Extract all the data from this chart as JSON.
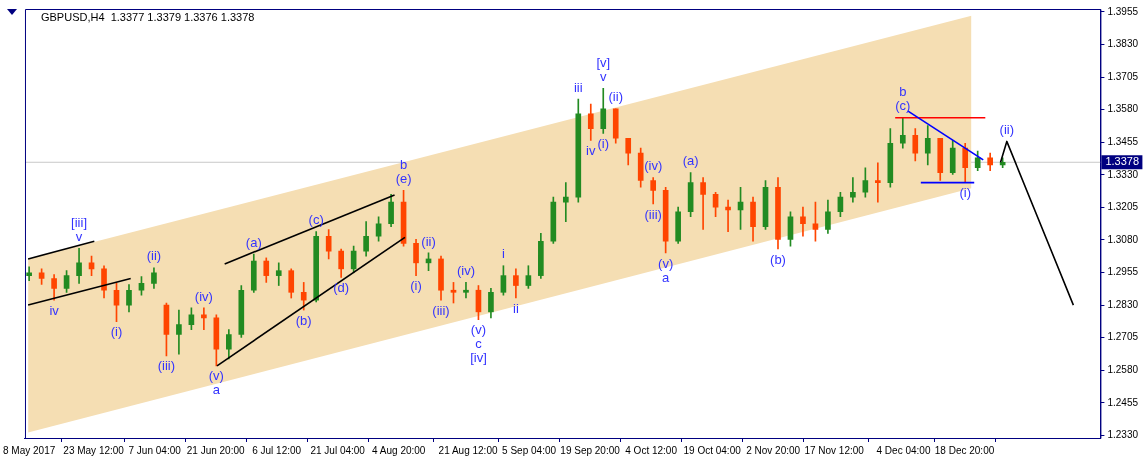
{
  "chart_data": {
    "type": "candlestick",
    "title": "GBPUSD,H4  1.3377 1.3379 1.3376 1.3378",
    "x": [
      "2017-05-08",
      "2017-05-11",
      "2017-05-14",
      "2017-05-17",
      "2017-05-20",
      "2017-05-23",
      "2017-05-26",
      "2017-05-29",
      "2017-06-01",
      "2017-06-04",
      "2017-06-07",
      "2017-06-10",
      "2017-06-13",
      "2017-06-16",
      "2017-06-19",
      "2017-06-22",
      "2017-06-25",
      "2017-06-28",
      "2017-07-01",
      "2017-07-04",
      "2017-07-07",
      "2017-07-10",
      "2017-07-13",
      "2017-07-16",
      "2017-07-19",
      "2017-07-22",
      "2017-07-25",
      "2017-07-28",
      "2017-07-31",
      "2017-08-03",
      "2017-08-06",
      "2017-08-09",
      "2017-08-12",
      "2017-08-15",
      "2017-08-18",
      "2017-08-21",
      "2017-08-24",
      "2017-08-27",
      "2017-08-30",
      "2017-09-02",
      "2017-09-05",
      "2017-09-08",
      "2017-09-11",
      "2017-09-14",
      "2017-09-17",
      "2017-09-20",
      "2017-09-23",
      "2017-09-26",
      "2017-09-29",
      "2017-10-02",
      "2017-10-05",
      "2017-10-08",
      "2017-10-11",
      "2017-10-14",
      "2017-10-17",
      "2017-10-20",
      "2017-10-23",
      "2017-10-26",
      "2017-10-29",
      "2017-11-01",
      "2017-11-04",
      "2017-11-07",
      "2017-11-10",
      "2017-11-13",
      "2017-11-16",
      "2017-11-19",
      "2017-11-22",
      "2017-11-25",
      "2017-11-28",
      "2017-12-01",
      "2017-12-04",
      "2017-12-07",
      "2017-12-10",
      "2017-12-13",
      "2017-12-16",
      "2017-12-19",
      "2017-12-22",
      "2017-12-25",
      "2017-12-28"
    ],
    "ohlc": [
      [
        1.2943,
        1.2977,
        1.2924,
        1.2954
      ],
      [
        1.2954,
        1.2969,
        1.2909,
        1.2932
      ],
      [
        1.2932,
        1.2947,
        1.2849,
        1.2894
      ],
      [
        1.2894,
        1.2962,
        1.2879,
        1.2943
      ],
      [
        1.2943,
        1.3048,
        1.2913,
        1.2992
      ],
      [
        1.2992,
        1.3018,
        1.2943,
        1.2969
      ],
      [
        1.2969,
        1.2981,
        1.2857,
        1.2887
      ],
      [
        1.2887,
        1.2913,
        1.2766,
        1.283
      ],
      [
        1.283,
        1.2909,
        1.2804,
        1.2887
      ],
      [
        1.2887,
        1.2939,
        1.2868,
        1.2913
      ],
      [
        1.2913,
        1.2973,
        1.2894,
        1.2954
      ],
      [
        1.283,
        1.2838,
        1.2635,
        1.2717
      ],
      [
        1.2717,
        1.2811,
        1.2642,
        1.2755
      ],
      [
        1.2755,
        1.2819,
        1.2736,
        1.2793
      ],
      [
        1.2793,
        1.2819,
        1.2736,
        1.2781
      ],
      [
        1.2781,
        1.2793,
        1.2597,
        1.2661
      ],
      [
        1.2661,
        1.2736,
        1.2623,
        1.2717
      ],
      [
        1.2717,
        1.2905,
        1.2706,
        1.2887
      ],
      [
        1.2887,
        1.3026,
        1.2879,
        1.2999
      ],
      [
        1.2999,
        1.3011,
        1.2917,
        1.2943
      ],
      [
        1.2943,
        1.2992,
        1.2905,
        1.2962
      ],
      [
        1.2962,
        1.2969,
        1.2857,
        1.2879
      ],
      [
        1.2879,
        1.2917,
        1.2811,
        1.2849
      ],
      [
        1.2849,
        1.3112,
        1.2842,
        1.3094
      ],
      [
        1.3094,
        1.312,
        1.3007,
        1.3037
      ],
      [
        1.3037,
        1.3045,
        1.2936,
        1.2969
      ],
      [
        1.2969,
        1.3056,
        1.2954,
        1.3037
      ],
      [
        1.3037,
        1.315,
        1.3018,
        1.3094
      ],
      [
        1.3094,
        1.3169,
        1.3075,
        1.3142
      ],
      [
        1.3142,
        1.3255,
        1.3131,
        1.3225
      ],
      [
        1.3225,
        1.327,
        1.3056,
        1.3067
      ],
      [
        1.3067,
        1.3082,
        1.2943,
        1.2992
      ],
      [
        1.2992,
        1.303,
        1.2962,
        1.3007
      ],
      [
        1.3007,
        1.3018,
        1.2849,
        1.2887
      ],
      [
        1.2887,
        1.2917,
        1.2838,
        1.2879
      ],
      [
        1.2879,
        1.2917,
        1.2857,
        1.2887
      ],
      [
        1.2887,
        1.2905,
        1.2774,
        1.2804
      ],
      [
        1.2804,
        1.2894,
        1.2781,
        1.2879
      ],
      [
        1.2879,
        1.2981,
        1.2868,
        1.2943
      ],
      [
        1.2943,
        1.2969,
        1.2857,
        1.2905
      ],
      [
        1.2905,
        1.2981,
        1.2894,
        1.2943
      ],
      [
        1.2943,
        1.3105,
        1.2932,
        1.3075
      ],
      [
        1.3075,
        1.3244,
        1.3067,
        1.3225
      ],
      [
        1.3225,
        1.33,
        1.315,
        1.3244
      ],
      [
        1.3244,
        1.362,
        1.3225,
        1.3564
      ],
      [
        1.3564,
        1.3601,
        1.3462,
        1.3507
      ],
      [
        1.3507,
        1.3662,
        1.3489,
        1.3583
      ],
      [
        1.3583,
        1.3583,
        1.3451,
        1.347
      ],
      [
        1.347,
        1.347,
        1.3368,
        1.3413
      ],
      [
        1.3413,
        1.3432,
        1.3282,
        1.3308
      ],
      [
        1.3308,
        1.3319,
        1.3218,
        1.327
      ],
      [
        1.327,
        1.3282,
        1.303,
        1.3075
      ],
      [
        1.3075,
        1.3206,
        1.3067,
        1.3188
      ],
      [
        1.3188,
        1.3338,
        1.3169,
        1.33
      ],
      [
        1.33,
        1.3319,
        1.312,
        1.3255
      ],
      [
        1.3255,
        1.3263,
        1.3169,
        1.3206
      ],
      [
        1.3206,
        1.3233,
        1.3112,
        1.3195
      ],
      [
        1.3195,
        1.3282,
        1.312,
        1.3225
      ],
      [
        1.3225,
        1.3244,
        1.3075,
        1.3131
      ],
      [
        1.3131,
        1.3308,
        1.312,
        1.3282
      ],
      [
        1.3282,
        1.3319,
        1.3045,
        1.3082
      ],
      [
        1.3082,
        1.3188,
        1.3056,
        1.3169
      ],
      [
        1.3169,
        1.3206,
        1.3094,
        1.3142
      ],
      [
        1.3142,
        1.3225,
        1.3075,
        1.312
      ],
      [
        1.312,
        1.3233,
        1.3105,
        1.3188
      ],
      [
        1.3188,
        1.3263,
        1.3169,
        1.3244
      ],
      [
        1.3244,
        1.3319,
        1.3225,
        1.3263
      ],
      [
        1.3263,
        1.3357,
        1.3244,
        1.3308
      ],
      [
        1.3308,
        1.3376,
        1.3225,
        1.33
      ],
      [
        1.33,
        1.3507,
        1.3282,
        1.3451
      ],
      [
        1.3451,
        1.3549,
        1.3432,
        1.3481
      ],
      [
        1.3481,
        1.3507,
        1.3383,
        1.3413
      ],
      [
        1.3413,
        1.3519,
        1.3368,
        1.347
      ],
      [
        1.347,
        1.347,
        1.3308,
        1.3338
      ],
      [
        1.3338,
        1.3462,
        1.3331,
        1.3432
      ],
      [
        1.3432,
        1.3451,
        1.33,
        1.3357
      ],
      [
        1.3357,
        1.3421,
        1.3346,
        1.3395
      ],
      [
        1.3395,
        1.3413,
        1.3346,
        1.3368
      ],
      [
        1.3368,
        1.3395,
        1.3357,
        1.3378
      ]
    ],
    "colors": [
      "#228b22",
      "#ff4500",
      "#ff4500",
      "#228b22",
      "#228b22",
      "#ff4500",
      "#ff4500",
      "#ff4500",
      "#228b22",
      "#228b22",
      "#228b22",
      "#ff4500",
      "#228b22",
      "#228b22",
      "#ff4500",
      "#ff4500",
      "#228b22",
      "#228b22",
      "#228b22",
      "#ff4500",
      "#228b22",
      "#ff4500",
      "#ff4500",
      "#228b22",
      "#ff4500",
      "#ff4500",
      "#228b22",
      "#228b22",
      "#228b22",
      "#228b22",
      "#ff4500",
      "#ff4500",
      "#228b22",
      "#ff4500",
      "#ff4500",
      "#228b22",
      "#ff4500",
      "#228b22",
      "#228b22",
      "#ff4500",
      "#228b22",
      "#228b22",
      "#228b22",
      "#228b22",
      "#228b22",
      "#ff4500",
      "#228b22",
      "#ff4500",
      "#ff4500",
      "#ff4500",
      "#ff4500",
      "#ff4500",
      "#228b22",
      "#228b22",
      "#ff4500",
      "#ff4500",
      "#ff4500",
      "#228b22",
      "#ff4500",
      "#228b22",
      "#ff4500",
      "#228b22",
      "#ff4500",
      "#ff4500",
      "#228b22",
      "#228b22",
      "#228b22",
      "#228b22",
      "#ff4500",
      "#228b22",
      "#228b22",
      "#ff4500",
      "#228b22",
      "#ff4500",
      "#228b22",
      "#ff4500",
      "#228b22",
      "#ff4500",
      "#228b22"
    ],
    "series": [
      {
        "type": "line",
        "color": "#f5deb3",
        "x": [
          "2017-05-07T18:00",
          "2017-12-20T12:00"
        ],
        "values": [
          null,
          null
        ],
        "lower": [
          1.2341,
          1.3278
        ],
        "upper": [
          1.3007,
          1.394
        ]
      },
      {
        "type": "line",
        "color": "#000000",
        "x": [
          "2017-05-07T18:00",
          "2017-05-23T16:00"
        ],
        "values": [
          1.3007,
          1.3075
        ]
      },
      {
        "type": "line",
        "color": "#000000",
        "x": [
          "2017-05-07T18:00",
          "2017-06-01T10:00"
        ],
        "values": [
          1.283,
          1.2932
        ]
      },
      {
        "type": "line",
        "color": "#000000",
        "x": [
          "2017-06-24T00:00",
          "2017-08-03T20:00"
        ],
        "values": [
          1.2988,
          1.3252
        ]
      },
      {
        "type": "line",
        "color": "#000000",
        "x": [
          "2017-06-22T04:00",
          "2017-08-06T08:00"
        ],
        "values": [
          1.2597,
          1.309
        ]
      },
      {
        "type": "line",
        "color": "#0000ff",
        "x": [
          "2017-12-05T04:00",
          "2017-12-23T08:00"
        ],
        "values": [
          1.3575,
          1.3387
        ]
      },
      {
        "type": "line",
        "color": "#0000ff",
        "x": [
          "2017-12-08T08:00",
          "2017-12-21T04:00"
        ],
        "values": [
          1.33,
          1.33
        ]
      },
      {
        "type": "line",
        "color": "#ff0000",
        "x": [
          "2017-12-02T04:00",
          "2017-12-23T20:00"
        ],
        "values": [
          1.3549,
          1.3549
        ]
      },
      {
        "type": "line",
        "color": "#000000",
        "x": [
          "2017-12-27T12:00",
          "2017-12-29T00:00",
          "2018-01-14T00:00"
        ],
        "values": [
          1.3378,
          1.3458,
          1.283
        ]
      }
    ],
    "ref_lines": [
      {
        "axis": "y",
        "value": 1.3378,
        "label": "1.3378",
        "color": "#c8c8c8"
      }
    ],
    "annotations": [
      {
        "text": "v",
        "x": "2017-05-20",
        "y": 1.3048
      },
      {
        "text": "[iii]",
        "x": "2017-05-20",
        "y": 1.3048
      },
      {
        "text": "iv",
        "x": "2017-05-14",
        "y": 1.2849
      },
      {
        "text": "(i)",
        "x": "2017-05-29",
        "y": 1.2766
      },
      {
        "text": "(ii)",
        "x": "2017-06-07",
        "y": 1.2973
      },
      {
        "text": "(iii)",
        "x": "2017-06-10",
        "y": 1.2635
      },
      {
        "text": "(iv)",
        "x": "2017-06-19",
        "y": 1.2819
      },
      {
        "text": "(v)",
        "x": "2017-06-22",
        "y": 1.2597
      },
      {
        "text": "a",
        "x": "2017-06-22",
        "y": 1.2597
      },
      {
        "text": "(a)",
        "x": "2017-07-01",
        "y": 1.3026
      },
      {
        "text": "(b)",
        "x": "2017-07-13",
        "y": 1.2811
      },
      {
        "text": "(c)",
        "x": "2017-07-16",
        "y": 1.3112
      },
      {
        "text": "(d)",
        "x": "2017-07-22",
        "y": 1.2936
      },
      {
        "text": "(e)",
        "x": "2017-08-06",
        "y": 1.327
      },
      {
        "text": "b",
        "x": "2017-08-06",
        "y": 1.327
      },
      {
        "text": "(i)",
        "x": "2017-08-09",
        "y": 1.2943
      },
      {
        "text": "(ii)",
        "x": "2017-08-12",
        "y": 1.303
      },
      {
        "text": "(iii)",
        "x": "2017-08-15",
        "y": 1.2849
      },
      {
        "text": "(iv)",
        "x": "2017-08-21",
        "y": 1.2917
      },
      {
        "text": "(v)",
        "x": "2017-08-24",
        "y": 1.2774
      },
      {
        "text": "c",
        "x": "2017-08-24",
        "y": 1.2774
      },
      {
        "text": "[iv]",
        "x": "2017-08-24",
        "y": 1.2774
      },
      {
        "text": "i",
        "x": "2017-08-30",
        "y": 1.2981
      },
      {
        "text": "ii",
        "x": "2017-09-02",
        "y": 1.2857
      },
      {
        "text": "iii",
        "x": "2017-09-17",
        "y": 1.362
      },
      {
        "text": "iv",
        "x": "2017-09-20",
        "y": 1.3462
      },
      {
        "text": "(i)",
        "x": "2017-09-23",
        "y": 1.3489
      },
      {
        "text": "v",
        "x": "2017-09-23",
        "y": 1.3662
      },
      {
        "text": "[v]",
        "x": "2017-09-23",
        "y": 1.3662
      },
      {
        "text": "(ii)",
        "x": "2017-09-26",
        "y": 1.3583
      },
      {
        "text": "(iii)",
        "x": "2017-10-05",
        "y": 1.3218
      },
      {
        "text": "(iv)",
        "x": "2017-10-05",
        "y": 1.3319
      },
      {
        "text": "(v)",
        "x": "2017-10-08",
        "y": 1.303
      },
      {
        "text": "a",
        "x": "2017-10-08",
        "y": 1.303
      },
      {
        "text": "(a)",
        "x": "2017-10-14",
        "y": 1.3338
      },
      {
        "text": "(b)",
        "x": "2017-11-04",
        "y": 1.3045
      },
      {
        "text": "(c)",
        "x": "2017-12-04",
        "y": 1.3549
      },
      {
        "text": "b",
        "x": "2017-12-04",
        "y": 1.3549
      },
      {
        "text": "(i)",
        "x": "2017-12-19",
        "y": 1.33
      },
      {
        "text": "(ii)",
        "x": "2017-12-29T00:00",
        "y": 1.3458
      }
    ],
    "xlim": [
      "2017-05-07T00:00",
      "2018-01-20T12:00"
    ],
    "xticks": [
      {
        "value": "2017-05-08",
        "label": "8 May 2017"
      },
      {
        "value": "2017-05-23T12:00",
        "label": "23 May 12:00"
      },
      {
        "value": "2017-06-07T04:00",
        "label": "7 Jun 04:00"
      },
      {
        "value": "2017-06-21T20:00",
        "label": "21 Jun 20:00"
      },
      {
        "value": "2017-07-06T12:00",
        "label": "6 Jul 12:00"
      },
      {
        "value": "2017-07-21T04:00",
        "label": "21 Jul 04:00"
      },
      {
        "value": "2017-08-04T20:00",
        "label": "4 Aug 20:00"
      },
      {
        "value": "2017-08-21T12:00",
        "label": "21 Aug 12:00"
      },
      {
        "value": "2017-09-05T04:00",
        "label": "5 Sep 04:00"
      },
      {
        "value": "2017-09-19T20:00",
        "label": "19 Sep 20:00"
      },
      {
        "value": "2017-10-04T12:00",
        "label": "4 Oct 12:00"
      },
      {
        "value": "2017-10-19T04:00",
        "label": "19 Oct 04:00"
      },
      {
        "value": "2017-11-02T20:00",
        "label": "2 Nov 20:00"
      },
      {
        "value": "2017-11-17T12:00",
        "label": "17 Nov 12:00"
      },
      {
        "value": "2017-12-04T04:00",
        "label": "4 Dec 04:00"
      },
      {
        "value": "2017-12-18T20:00",
        "label": "18 Dec 20:00"
      }
    ],
    "ylim": [
      1.232,
      1.3966
    ],
    "yticks": [
      {
        "value": 1.233,
        "label": "1.2330"
      },
      {
        "value": 1.2455,
        "label": "1.2455"
      },
      {
        "value": 1.258,
        "label": "1.2580"
      },
      {
        "value": 1.2705,
        "label": "1.2705"
      },
      {
        "value": 1.283,
        "label": "1.2830"
      },
      {
        "value": 1.2955,
        "label": "1.2955"
      },
      {
        "value": 1.308,
        "label": "1.3080"
      },
      {
        "value": 1.3205,
        "label": "1.3205"
      },
      {
        "value": 1.333,
        "label": "1.3330"
      },
      {
        "value": 1.3455,
        "label": "1.3455"
      },
      {
        "value": 1.358,
        "label": "1.3580"
      },
      {
        "value": 1.3705,
        "label": "1.3705"
      },
      {
        "value": 1.383,
        "label": "1.3830"
      },
      {
        "value": 1.3955,
        "label": "1.3955"
      }
    ],
    "grid": false,
    "legend": false
  }
}
